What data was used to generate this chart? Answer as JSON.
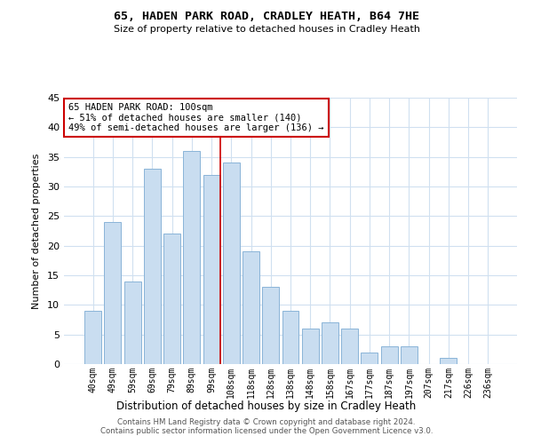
{
  "title": "65, HADEN PARK ROAD, CRADLEY HEATH, B64 7HE",
  "subtitle": "Size of property relative to detached houses in Cradley Heath",
  "xlabel": "Distribution of detached houses by size in Cradley Heath",
  "ylabel": "Number of detached properties",
  "categories": [
    "40sqm",
    "49sqm",
    "59sqm",
    "69sqm",
    "79sqm",
    "89sqm",
    "99sqm",
    "108sqm",
    "118sqm",
    "128sqm",
    "138sqm",
    "148sqm",
    "158sqm",
    "167sqm",
    "177sqm",
    "187sqm",
    "197sqm",
    "207sqm",
    "217sqm",
    "226sqm",
    "236sqm"
  ],
  "values": [
    9,
    24,
    14,
    33,
    22,
    36,
    32,
    34,
    19,
    13,
    9,
    6,
    7,
    6,
    2,
    3,
    3,
    0,
    1,
    0,
    0
  ],
  "bar_color": "#c9ddf0",
  "bar_edge_color": "#8ab4d8",
  "grid_color": "#d0e0f0",
  "background_color": "#ffffff",
  "annotation_line_bin_index": 6,
  "annotation_text_line1": "65 HADEN PARK ROAD: 100sqm",
  "annotation_text_line2": "← 51% of detached houses are smaller (140)",
  "annotation_text_line3": "49% of semi-detached houses are larger (136) →",
  "annotation_box_color": "#ffffff",
  "annotation_box_edge_color": "#cc0000",
  "annotation_line_color": "#cc0000",
  "ylim": [
    0,
    45
  ],
  "yticks": [
    0,
    5,
    10,
    15,
    20,
    25,
    30,
    35,
    40,
    45
  ],
  "footer_line1": "Contains HM Land Registry data © Crown copyright and database right 2024.",
  "footer_line2": "Contains public sector information licensed under the Open Government Licence v3.0."
}
